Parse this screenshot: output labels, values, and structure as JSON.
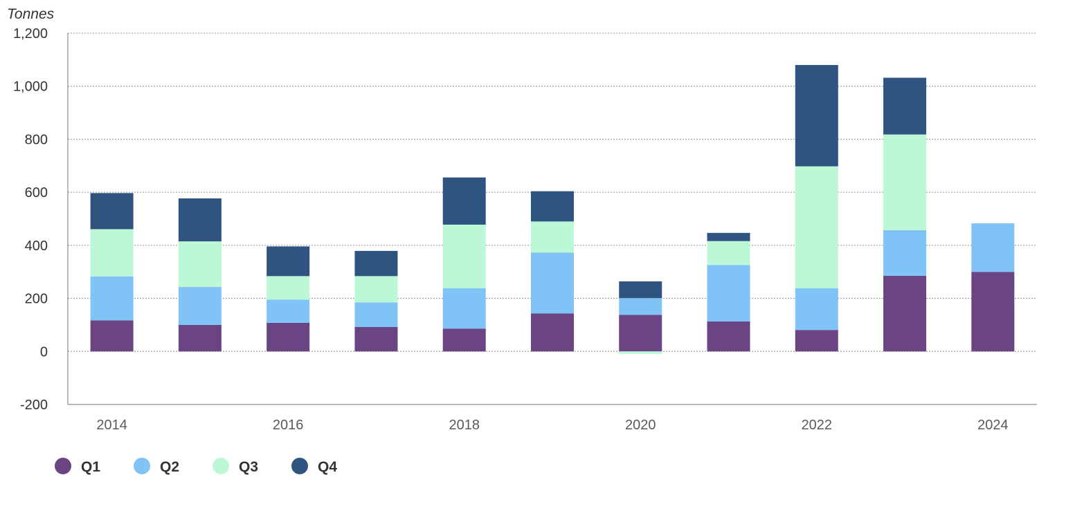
{
  "chart_data": {
    "type": "bar",
    "stacked": true,
    "unit_label": "Tonnes",
    "categories": [
      "2014",
      "2015",
      "2016",
      "2017",
      "2018",
      "2019",
      "2020",
      "2021",
      "2022",
      "2023",
      "2024"
    ],
    "x_tick_labels": [
      "2014",
      "",
      "2016",
      "",
      "2018",
      "",
      "2020",
      "",
      "2022",
      "",
      "2024"
    ],
    "y_ticks": [
      "-200",
      "0",
      "200",
      "400",
      "600",
      "800",
      "1,000",
      "1,200"
    ],
    "ylim": [
      -200,
      1200
    ],
    "grid": true,
    "legend_position": "bottom-left",
    "series": [
      {
        "name": "Q1",
        "color": "#6B4483",
        "values": [
          117,
          100,
          108,
          92,
          86,
          143,
          138,
          113,
          81,
          285,
          300
        ]
      },
      {
        "name": "Q2",
        "color": "#80C3F7",
        "values": [
          166,
          143,
          87,
          93,
          152,
          230,
          63,
          213,
          157,
          172,
          183
        ]
      },
      {
        "name": "Q3",
        "color": "#BCF8D6",
        "values": [
          178,
          172,
          89,
          99,
          240,
          117,
          -10,
          90,
          460,
          361,
          0
        ]
      },
      {
        "name": "Q4",
        "color": "#2F5480",
        "values": [
          136,
          162,
          112,
          95,
          178,
          114,
          63,
          31,
          382,
          214,
          0
        ]
      }
    ]
  }
}
